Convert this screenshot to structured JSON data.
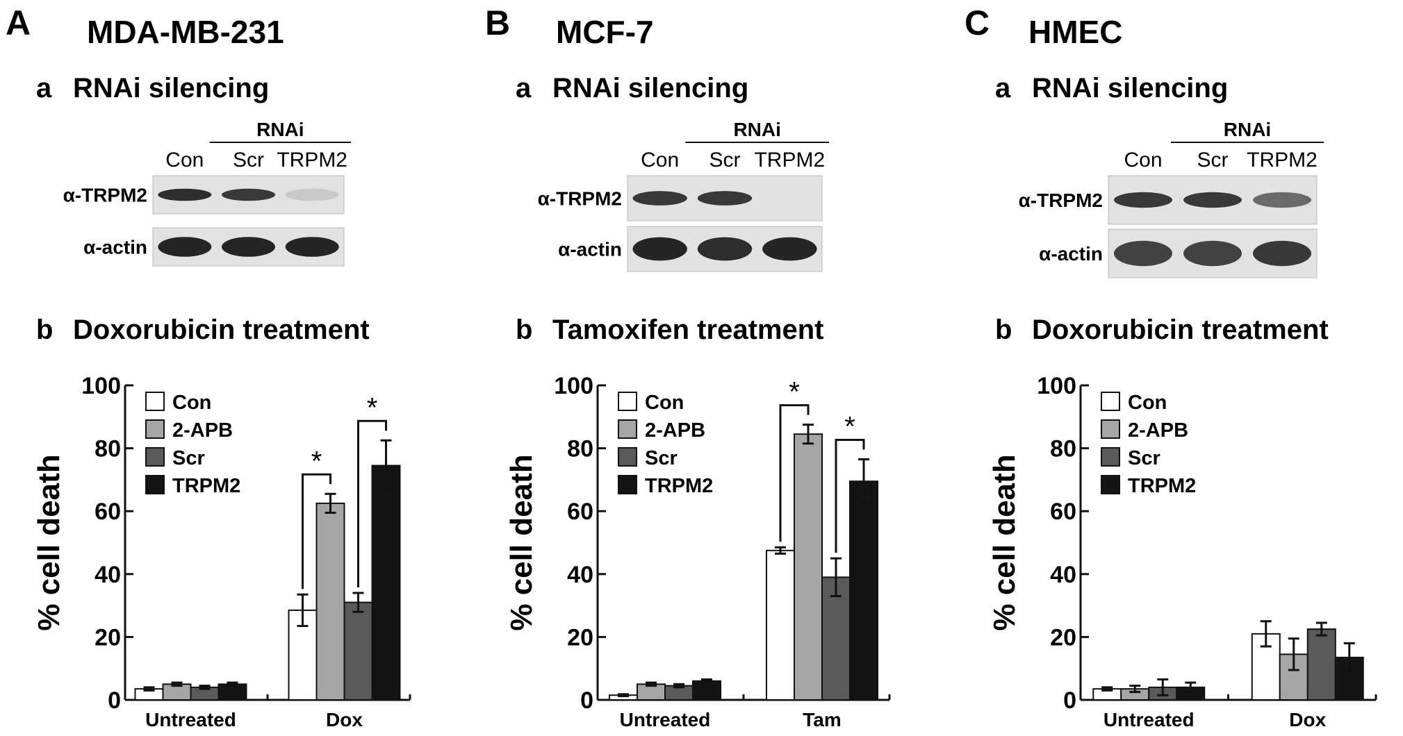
{
  "colors": {
    "Con": "#ffffff",
    "2-APB": "#a6a6a6",
    "Scr": "#5a5a5a",
    "TRPM2": "#141414",
    "blot_bg": "#e2e2e2",
    "band": "#1a1a1a"
  },
  "panels": [
    {
      "letter": "A",
      "cell_line": "MDA-MB-231",
      "blot": {
        "heading_a": "a",
        "heading": "RNAi silencing",
        "rnai_label": "RNAi",
        "lanes": [
          "Con",
          "Scr",
          "TRPM2"
        ],
        "rows": [
          {
            "label": "α-TRPM2",
            "intensity": [
              0.9,
              0.85,
              0.12
            ]
          },
          {
            "label": "α-actin",
            "intensity": [
              0.95,
              0.95,
              0.95
            ]
          }
        ]
      },
      "chart_heading_b": "b",
      "chart_heading": "Doxorubicin treatment"
    },
    {
      "letter": "B",
      "cell_line": "MCF-7",
      "blot": {
        "heading_a": "a",
        "heading": "RNAi silencing",
        "rnai_label": "RNAi",
        "lanes": [
          "Con",
          "Scr",
          "TRPM2"
        ],
        "rows": [
          {
            "label": "α-TRPM2",
            "intensity": [
              0.85,
              0.85,
              0.0
            ]
          },
          {
            "label": "α-actin",
            "intensity": [
              0.95,
              0.9,
              0.95
            ]
          }
        ]
      },
      "chart_heading_b": "b",
      "chart_heading": "Tamoxifen treatment"
    },
    {
      "letter": "C",
      "cell_line": "HMEC",
      "blot": {
        "heading_a": "a",
        "heading": "RNAi silencing",
        "rnai_label": "RNAi",
        "lanes": [
          "Con",
          "Scr",
          "TRPM2"
        ],
        "rows": [
          {
            "label": "α-TRPM2",
            "intensity": [
              0.85,
              0.85,
              0.6
            ]
          },
          {
            "label": "α-actin",
            "intensity": [
              0.8,
              0.8,
              0.85
            ]
          }
        ]
      },
      "chart_heading_b": "b",
      "chart_heading": "Doxorubicin treatment"
    }
  ],
  "chart_data": [
    {
      "type": "bar",
      "ylabel": "% cell death",
      "ylim": [
        0,
        100
      ],
      "yticks": [
        0,
        20,
        40,
        60,
        80,
        100
      ],
      "categories": [
        "Untreated",
        "Dox"
      ],
      "legend": "top-left",
      "series": [
        {
          "name": "Con",
          "values": [
            3.5,
            28.5
          ],
          "errors": [
            0.5,
            5
          ]
        },
        {
          "name": "2-APB",
          "values": [
            5,
            62.5
          ],
          "errors": [
            0.5,
            3
          ]
        },
        {
          "name": "Scr",
          "values": [
            4,
            31
          ],
          "errors": [
            0.5,
            3
          ]
        },
        {
          "name": "TRPM2",
          "values": [
            5,
            74.5
          ],
          "errors": [
            0.5,
            8
          ]
        }
      ],
      "significance": [
        {
          "category": "Dox",
          "from": "Con",
          "to": "2-APB",
          "label": "*"
        },
        {
          "category": "Dox",
          "from": "Scr",
          "to": "TRPM2",
          "label": "*"
        }
      ]
    },
    {
      "type": "bar",
      "ylabel": "% cell death",
      "ylim": [
        0,
        100
      ],
      "yticks": [
        0,
        20,
        40,
        60,
        80,
        100
      ],
      "categories": [
        "Untreated",
        "Tam"
      ],
      "legend": "top-left",
      "series": [
        {
          "name": "Con",
          "values": [
            1.5,
            47.5
          ],
          "errors": [
            0.3,
            1
          ]
        },
        {
          "name": "2-APB",
          "values": [
            5,
            84.5
          ],
          "errors": [
            0.5,
            3
          ]
        },
        {
          "name": "Scr",
          "values": [
            4.5,
            39
          ],
          "errors": [
            0.5,
            6
          ]
        },
        {
          "name": "TRPM2",
          "values": [
            6,
            69.5
          ],
          "errors": [
            0.5,
            7
          ]
        }
      ],
      "significance": [
        {
          "category": "Tam",
          "from": "Con",
          "to": "2-APB",
          "label": "*"
        },
        {
          "category": "Tam",
          "from": "Scr",
          "to": "TRPM2",
          "label": "*"
        }
      ]
    },
    {
      "type": "bar",
      "ylabel": "% cell death",
      "ylim": [
        0,
        100
      ],
      "yticks": [
        0,
        20,
        40,
        60,
        80,
        100
      ],
      "categories": [
        "Untreated",
        "Dox"
      ],
      "legend": "top-left",
      "series": [
        {
          "name": "Con",
          "values": [
            3.5,
            21
          ],
          "errors": [
            0.5,
            4
          ]
        },
        {
          "name": "2-APB",
          "values": [
            3.5,
            14.5
          ],
          "errors": [
            1,
            5
          ]
        },
        {
          "name": "Scr",
          "values": [
            4,
            22.5
          ],
          "errors": [
            2.5,
            2
          ]
        },
        {
          "name": "TRPM2",
          "values": [
            4,
            13.5
          ],
          "errors": [
            1.5,
            4.5
          ]
        }
      ],
      "significance": []
    }
  ]
}
